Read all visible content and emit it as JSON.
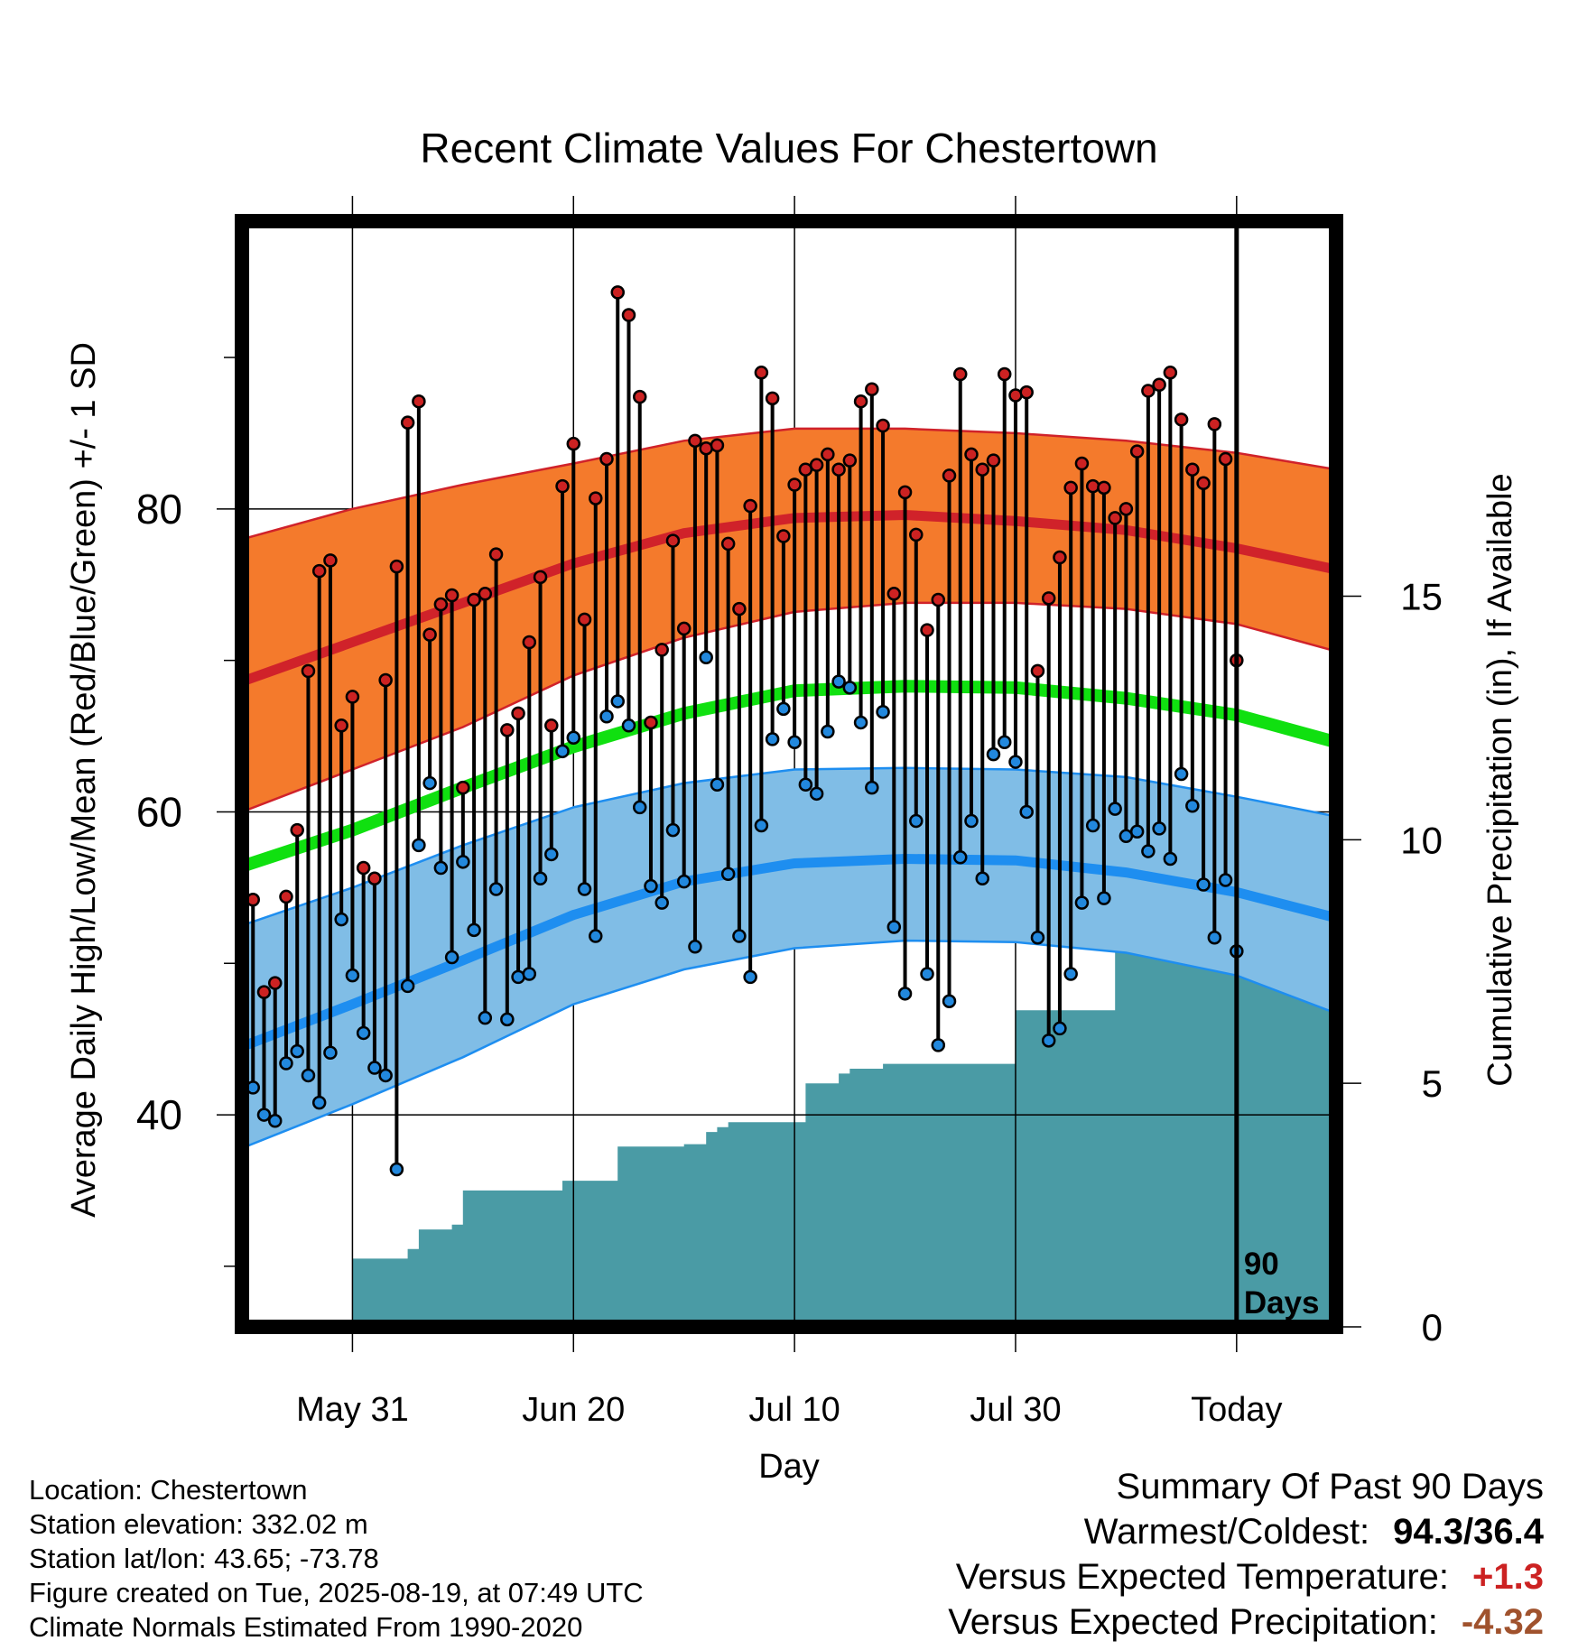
{
  "chart_data": {
    "type": "line",
    "title": "Recent Climate Values For Chestertown",
    "xlabel": "Day",
    "ylabel": "Average Daily High/Low/Mean (Red/Blue/Green) +/- 1 SD",
    "y2label": "Cumulative Precipitation (in), If Available",
    "xlim_days": [
      -90,
      9
    ],
    "ylim": [
      26,
      99
    ],
    "y2lim": [
      0,
      22.7
    ],
    "x_ticks": [
      {
        "label": "May 31",
        "day": -80
      },
      {
        "label": "Jun 20",
        "day": -60
      },
      {
        "label": "Jul 10",
        "day": -40
      },
      {
        "label": "Jul 30",
        "day": -20
      },
      {
        "label": "Today",
        "day": 0
      }
    ],
    "y_ticks": [
      40,
      60,
      80
    ],
    "y_minor_ticks": [
      30,
      50,
      70,
      90
    ],
    "y2_ticks": [
      0,
      5,
      10,
      15
    ],
    "grid": true,
    "today_line_label": [
      "90",
      "Days"
    ],
    "colors": {
      "high_band": "#f47a2c",
      "high_line": "#d0222a",
      "low_band": "#80bde6",
      "low_line": "#1e8ef0",
      "mean_line": "#10e010",
      "precip": "#4a9ba5",
      "high_point": "#cc2222",
      "low_point": "#2288dd"
    },
    "normal_days": [
      -90,
      -80,
      -70,
      -60,
      -50,
      -40,
      -30,
      -20,
      -10,
      0,
      9
    ],
    "normal_high": [
      68.6,
      71.2,
      73.8,
      76.4,
      78.4,
      79.4,
      79.6,
      79.2,
      78.6,
      77.4,
      76.0
    ],
    "normal_high_upper": [
      78.0,
      80.0,
      81.6,
      83.0,
      84.5,
      85.3,
      85.3,
      85.0,
      84.5,
      83.7,
      82.6
    ],
    "normal_high_lower": [
      60.0,
      62.8,
      65.6,
      69.0,
      71.5,
      73.2,
      73.8,
      73.8,
      73.4,
      72.4,
      70.6
    ],
    "normal_mean": [
      56.4,
      58.8,
      61.6,
      64.3,
      66.5,
      68.0,
      68.3,
      68.2,
      67.5,
      66.4,
      64.6
    ],
    "normal_low": [
      44.5,
      47.3,
      50.2,
      53.2,
      55.4,
      56.6,
      56.9,
      56.8,
      56.0,
      54.7,
      53.0
    ],
    "normal_low_upper": [
      52.5,
      55.0,
      57.8,
      60.3,
      61.9,
      62.8,
      62.9,
      62.8,
      62.3,
      61.0,
      59.7
    ],
    "normal_low_lower": [
      37.8,
      40.7,
      43.8,
      47.3,
      49.6,
      51.0,
      51.5,
      51.4,
      50.7,
      49.2,
      46.7
    ],
    "daily_days": [
      -89,
      -88,
      -87,
      -86,
      -85,
      -84,
      -83,
      -82,
      -81,
      -80,
      -79,
      -78,
      -77,
      -76,
      -75,
      -74,
      -73,
      -72,
      -71,
      -70,
      -69,
      -68,
      -67,
      -66,
      -65,
      -64,
      -63,
      -62,
      -61,
      -60,
      -59,
      -58,
      -57,
      -56,
      -55,
      -54,
      -53,
      -52,
      -51,
      -50,
      -49,
      -48,
      -47,
      -46,
      -45,
      -44,
      -43,
      -42,
      -41,
      -40,
      -39,
      -38,
      -37,
      -36,
      -35,
      -34,
      -33,
      -32,
      -31,
      -30,
      -29,
      -28,
      -27,
      -26,
      -25,
      -24,
      -23,
      -22,
      -21,
      -20,
      -19,
      -18,
      -17,
      -16,
      -15,
      -14,
      -13,
      -12,
      -11,
      -10,
      -9,
      -8,
      -7,
      -6,
      -5,
      -4,
      -3,
      -2,
      -1
    ],
    "daily_high": [
      54.2,
      48.1,
      48.7,
      54.4,
      58.8,
      69.3,
      75.9,
      76.6,
      65.7,
      67.6,
      56.3,
      55.6,
      68.7,
      76.2,
      85.7,
      87.1,
      71.7,
      73.7,
      74.3,
      61.6,
      74.0,
      74.4,
      77.0,
      65.4,
      66.5,
      71.2,
      75.5,
      65.7,
      81.5,
      84.3,
      72.7,
      80.7,
      83.3,
      94.3,
      92.8,
      87.4,
      65.9,
      70.7,
      77.9,
      72.1,
      84.5,
      84.0,
      84.2,
      77.7,
      73.4,
      80.2,
      89.0,
      87.3,
      78.2,
      81.6,
      82.6,
      82.9,
      83.6,
      82.6,
      83.2,
      87.1,
      87.9,
      85.5,
      74.4,
      81.1,
      78.3,
      72.0,
      74.0,
      82.2,
      88.9,
      83.6,
      82.6,
      83.2,
      88.9,
      87.5,
      87.7,
      69.3,
      74.1,
      76.8,
      81.4,
      83.0,
      81.5,
      81.4,
      79.4,
      80.0,
      83.8,
      87.8,
      88.2,
      89.0,
      85.9,
      82.6,
      81.7,
      85.6,
      83.3
    ],
    "daily_low": [
      41.8,
      40.0,
      39.6,
      43.4,
      44.2,
      42.6,
      40.8,
      44.1,
      52.9,
      49.2,
      45.4,
      43.1,
      42.6,
      36.4,
      48.5,
      57.8,
      61.9,
      56.3,
      50.4,
      56.7,
      52.2,
      46.4,
      54.9,
      46.3,
      49.1,
      49.3,
      55.6,
      57.2,
      64.0,
      64.9,
      54.9,
      51.8,
      66.3,
      67.3,
      65.7,
      60.3,
      55.1,
      54.0,
      58.8,
      55.4,
      51.1,
      70.2,
      61.8,
      55.9,
      51.8,
      49.1,
      59.1,
      64.8,
      66.8,
      64.6,
      61.8,
      61.2,
      65.3,
      68.6,
      68.2,
      65.9,
      61.6,
      66.6,
      52.4,
      48.0,
      59.4,
      49.3,
      44.6,
      47.5,
      57.0,
      59.4,
      55.6,
      63.8,
      64.6,
      63.3,
      60.0,
      51.7,
      44.9,
      45.7,
      49.3,
      54.0,
      59.1,
      54.3,
      60.2,
      58.4,
      58.7,
      57.4,
      58.9,
      56.9,
      62.5,
      60.4,
      55.2,
      51.7,
      55.5
    ],
    "last_day_high": 70.0,
    "last_day_low": 50.8,
    "precip_days": [
      -90,
      -85,
      -83,
      -81,
      -80,
      -79,
      -76,
      -75,
      -74,
      -73,
      -71,
      -70,
      -68,
      -67,
      -66,
      -63,
      -62,
      -61,
      -59,
      -58,
      -57,
      -56,
      -55,
      -53,
      -51,
      -50,
      -49,
      -48,
      -47,
      -46,
      -45,
      -43,
      -40,
      -39,
      -38,
      -36,
      -35,
      -33,
      -32,
      -30,
      -28,
      -25,
      -24,
      -22,
      -20,
      -18,
      -16,
      -14,
      -13,
      -12,
      -11,
      -9,
      -7,
      -6,
      -5,
      -3,
      -1,
      0,
      9
    ],
    "precip_cum": [
      0.0,
      0.05,
      0.1,
      0.1,
      1.4,
      1.4,
      1.4,
      1.6,
      2.0,
      2.0,
      2.1,
      2.8,
      2.8,
      2.8,
      2.8,
      2.8,
      2.8,
      3.0,
      3.0,
      3.0,
      3.0,
      3.7,
      3.7,
      3.7,
      3.7,
      3.75,
      3.75,
      4.0,
      4.1,
      4.2,
      4.2,
      4.2,
      4.2,
      5.0,
      5.0,
      5.2,
      5.3,
      5.3,
      5.4,
      5.4,
      5.4,
      5.4,
      5.4,
      5.4,
      6.5,
      6.5,
      6.5,
      6.5,
      6.5,
      6.5,
      8.3,
      8.4,
      8.4,
      8.4,
      8.6,
      8.6,
      8.6,
      8.6,
      8.6
    ]
  },
  "info": {
    "location": "Location: Chestertown",
    "elevation": "Station elevation: 332.02 m",
    "latlon": "Station lat/lon: 43.65; -73.78",
    "created": "Figure created on Tue, 2025-08-19, at 07:49 UTC",
    "normals": "Climate Normals Estimated From 1990-2020"
  },
  "summary": {
    "heading": "Summary Of Past 90 Days",
    "warmest_label": "Warmest/Coldest:",
    "warmest_value": "94.3/36.4",
    "temp_label": "Versus Expected Temperature:",
    "temp_value": "+1.3",
    "temp_color": "#cc2222",
    "precip_label": "Versus Expected Precipitation:",
    "precip_value": "-4.32",
    "precip_color": "#a0522d"
  }
}
